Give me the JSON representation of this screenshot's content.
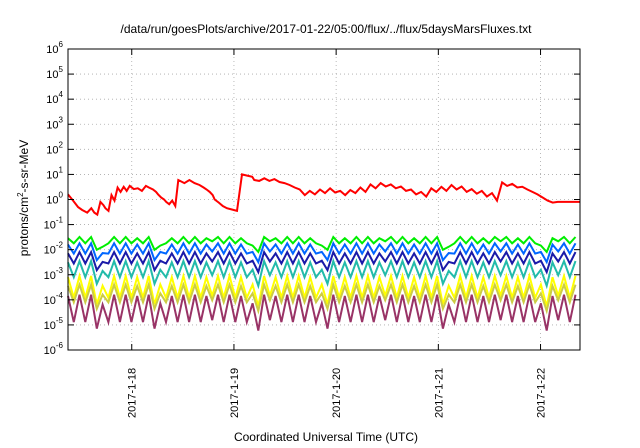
{
  "chart_data": {
    "type": "line",
    "title": "/data/run/goesPlots/archive/2017-01-22/05:00/flux/../flux/5daysMarsFluxes.txt",
    "xlabel": "Coordinated Universal Time (UTC)",
    "ylabel": "protons/cm²-s-sr-MeV",
    "ylabel_parts": {
      "pre": "protons/cm",
      "sup": "2",
      "post": "-s-sr-MeV"
    },
    "yscale": "log",
    "ylim": [
      1e-06,
      1000000.0
    ],
    "y_ticks": [
      {
        "base": "10",
        "exp": "-6",
        "value": 1e-06
      },
      {
        "base": "10",
        "exp": "-5",
        "value": 1e-05
      },
      {
        "base": "10",
        "exp": "-4",
        "value": 0.0001
      },
      {
        "base": "10",
        "exp": "-3",
        "value": 0.001
      },
      {
        "base": "10",
        "exp": "-2",
        "value": 0.01
      },
      {
        "base": "10",
        "exp": "-1",
        "value": 0.1
      },
      {
        "base": "10",
        "exp": "0",
        "value": 1
      },
      {
        "base": "10",
        "exp": "1",
        "value": 10
      },
      {
        "base": "10",
        "exp": "2",
        "value": 100
      },
      {
        "base": "10",
        "exp": "3",
        "value": 1000
      },
      {
        "base": "10",
        "exp": "4",
        "value": 10000
      },
      {
        "base": "10",
        "exp": "5",
        "value": 100000
      },
      {
        "base": "10",
        "exp": "6",
        "value": 1000000
      }
    ],
    "xlim": [
      2017.0117,
      2017.0623
    ],
    "x_ticks": [
      {
        "label": "2017-1-18",
        "value": 2017.018
      },
      {
        "label": "2017-1-19",
        "value": 2017.0281
      },
      {
        "label": "2017-1-20",
        "value": 2017.0382
      },
      {
        "label": "2017-1-21",
        "value": 2017.0483
      },
      {
        "label": "2017-1-22",
        "value": 2017.0584
      }
    ],
    "grid": true,
    "legend": "none",
    "series": [
      {
        "color": "#ff0000",
        "x": [
          2017.0117,
          2017.0122,
          2017.0127,
          2017.0131,
          2017.0136,
          2017.014,
          2017.0143,
          2017.0146,
          2017.0149,
          2017.0152,
          2017.0154,
          2017.0157,
          2017.016,
          2017.0163,
          2017.0166,
          2017.0169,
          2017.0172,
          2017.0175,
          2017.0178,
          2017.0182,
          2017.0186,
          2017.019,
          2017.0194,
          2017.0197,
          2017.0201,
          2017.0204,
          2017.0206,
          2017.0209,
          2017.0212,
          2017.0214,
          2017.0217,
          2017.022,
          2017.0223,
          2017.0226,
          2017.0232,
          2017.0237,
          2017.0242,
          2017.0247,
          2017.0251,
          2017.0254,
          2017.0257,
          2017.026,
          2017.0262,
          2017.0266,
          2017.027,
          2017.0274,
          2017.0279,
          2017.0284,
          2017.0289,
          2017.0294,
          2017.0299,
          2017.03,
          2017.0301,
          2017.0306,
          2017.0311,
          2017.0316,
          2017.0321,
          2017.0326,
          2017.0331,
          2017.0336,
          2017.0341,
          2017.0346,
          2017.0351,
          2017.0356,
          2017.0361,
          2017.0366,
          2017.0371,
          2017.0376,
          2017.0381,
          2017.0386,
          2017.0391,
          2017.0396,
          2017.0401,
          2017.0406,
          2017.0411,
          2017.0416,
          2017.0421,
          2017.0426,
          2017.0431,
          2017.0436,
          2017.0441,
          2017.0446,
          2017.0451,
          2017.0456,
          2017.0461,
          2017.0466,
          2017.0471,
          2017.0476,
          2017.0481,
          2017.0486,
          2017.0491,
          2017.0496,
          2017.0501,
          2017.0506,
          2017.0511,
          2017.0516,
          2017.0521,
          2017.0526,
          2017.0531,
          2017.0536,
          2017.0541,
          2017.0546,
          2017.0551,
          2017.0556,
          2017.0561,
          2017.0566,
          2017.0571,
          2017.0576,
          2017.0581,
          2017.0586,
          2017.0591,
          2017.0596,
          2017.0601,
          2017.0606,
          2017.0611,
          2017.0616,
          2017.062,
          2017.0623
        ],
        "values": [
          1.6,
          0.9,
          0.5,
          0.38,
          0.3,
          0.45,
          0.3,
          0.25,
          0.8,
          0.6,
          0.45,
          0.35,
          1.5,
          0.9,
          3.0,
          2.0,
          3.2,
          2.2,
          3.5,
          2.6,
          2.8,
          2.2,
          3.5,
          3.0,
          2.5,
          2.0,
          1.6,
          1.2,
          1.0,
          0.8,
          0.65,
          0.9,
          0.55,
          6.0,
          4.5,
          6.0,
          4.5,
          3.8,
          3.0,
          2.5,
          2.0,
          1.5,
          1.0,
          0.75,
          0.55,
          0.45,
          0.4,
          0.35,
          10.0,
          9.0,
          8.0,
          7.0,
          6.0,
          5.5,
          7.0,
          5.5,
          6.5,
          5.0,
          4.5,
          3.8,
          3.0,
          2.5,
          1.5,
          2.2,
          1.6,
          2.5,
          1.8,
          2.8,
          1.9,
          2.2,
          1.5,
          2.4,
          1.8,
          3.0,
          2.0,
          4.0,
          2.8,
          4.5,
          3.3,
          4.0,
          2.8,
          3.3,
          2.2,
          2.5,
          1.6,
          2.0,
          1.3,
          2.8,
          2.0,
          3.2,
          2.2,
          3.8,
          2.5,
          3.3,
          2.0,
          2.6,
          1.7,
          2.2,
          1.3,
          1.8,
          0.9,
          4.8,
          3.5,
          4.2,
          3.0,
          3.2,
          2.5,
          2.0,
          1.6,
          1.2,
          0.9,
          0.75,
          0.8,
          0.8,
          0.8,
          0.8,
          0.8,
          0.8
        ]
      },
      {
        "color": "#00ee00",
        "sawtooth": {
          "x0": 2017.0117,
          "step": 0.00057,
          "peak": 0.032,
          "trough": 0.018,
          "drop_at": [
            2017.0147,
            2017.0206,
            2017.0302,
            2017.0372,
            2017.049,
            2017.0587
          ]
        }
      },
      {
        "color": "#0066ff",
        "sawtooth": {
          "x0": 2017.0117,
          "step": 0.00057,
          "peak": 0.018,
          "trough": 0.007,
          "drop_at": [
            2017.0147,
            2017.0206,
            2017.0302,
            2017.0372,
            2017.049,
            2017.0587
          ]
        }
      },
      {
        "color": "#1a1aa8",
        "sawtooth": {
          "x0": 2017.0117,
          "step": 0.00057,
          "peak": 0.008,
          "trough": 0.0028,
          "drop_at": [
            2017.0147,
            2017.0206,
            2017.0302,
            2017.0372,
            2017.049,
            2017.0587
          ]
        }
      },
      {
        "color": "#22bbaa",
        "sawtooth": {
          "x0": 2017.0117,
          "step": 0.00057,
          "peak": 0.0035,
          "trough": 0.0008,
          "drop_at": [
            2017.0147,
            2017.0206,
            2017.0302,
            2017.0372,
            2017.049,
            2017.0587
          ]
        }
      },
      {
        "color": "#ffff00",
        "sawtooth": {
          "x0": 2017.0117,
          "step": 0.00057,
          "peak": 0.0009,
          "trough": 0.00012,
          "drop_at": [
            2017.0147,
            2017.0206,
            2017.0302,
            2017.0372,
            2017.049,
            2017.0587
          ]
        }
      },
      {
        "color": "#cccc44",
        "sawtooth": {
          "x0": 2017.0117,
          "step": 0.00057,
          "peak": 0.0004,
          "trough": 8e-05,
          "drop_at": [
            2017.0147,
            2017.0206,
            2017.0302,
            2017.0372,
            2017.049,
            2017.0587
          ]
        }
      },
      {
        "color": "#993366",
        "sawtooth": {
          "x0": 2017.0117,
          "step": 0.00057,
          "peak": 0.00016,
          "trough": 1.3e-05,
          "drop_at": [
            2017.0147,
            2017.0206,
            2017.0302,
            2017.0372,
            2017.049,
            2017.0587
          ]
        }
      }
    ]
  }
}
